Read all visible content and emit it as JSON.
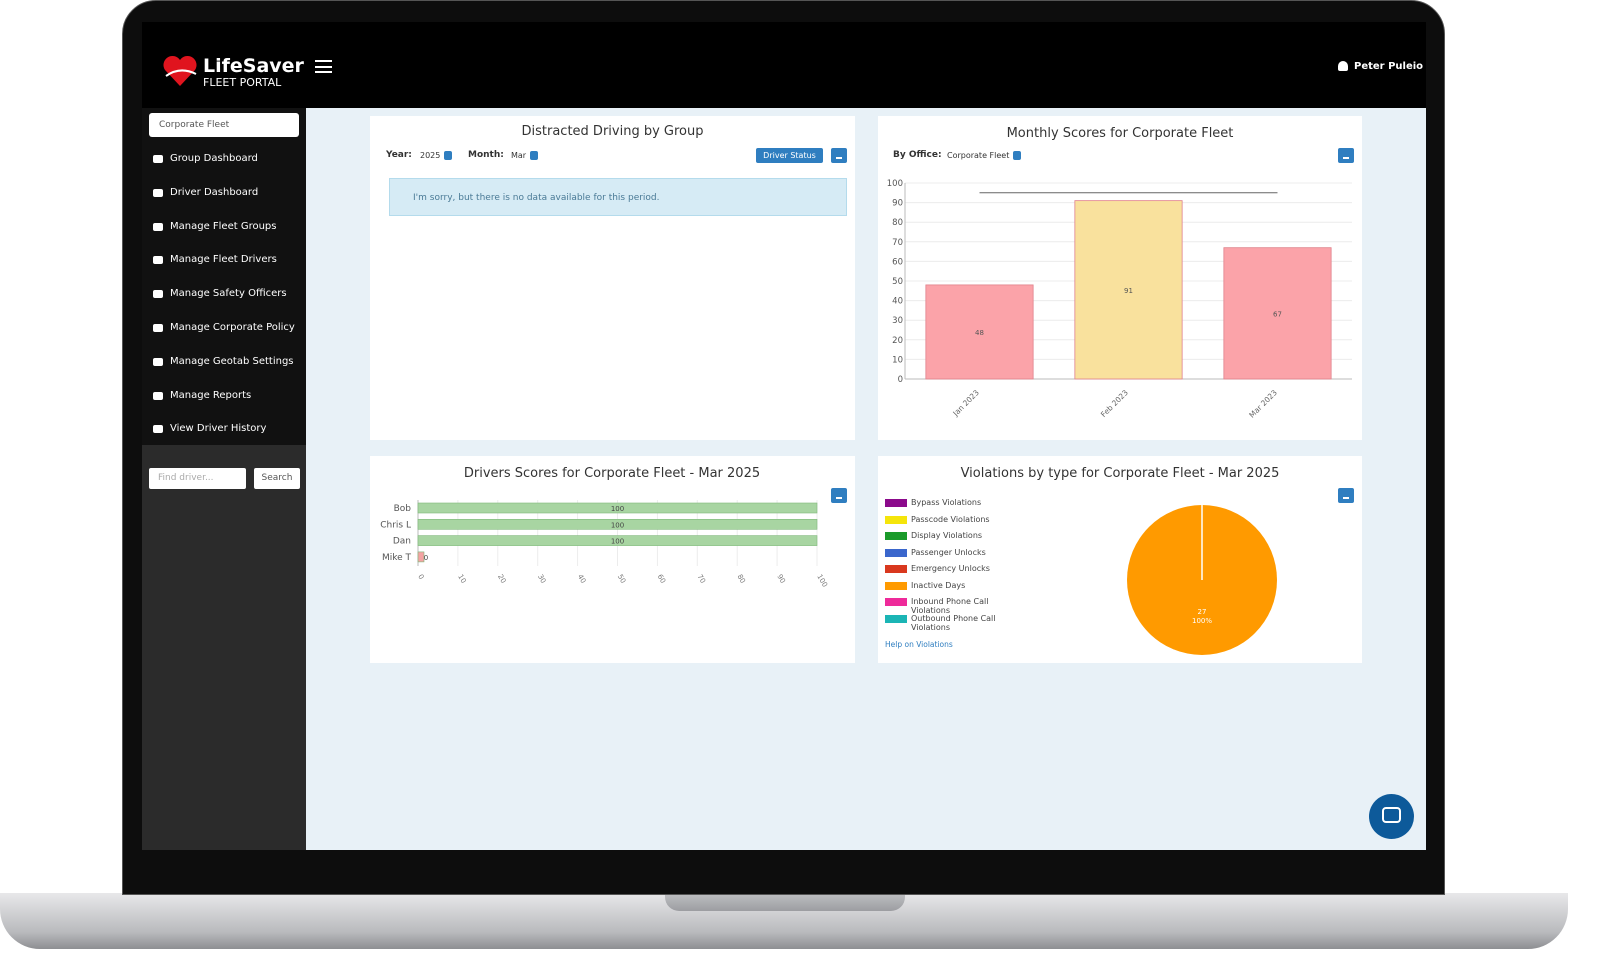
{
  "header": {
    "brand": "LifeSaver",
    "tagline": "FLEET PORTAL",
    "user": "Peter Puleio"
  },
  "sidebar": {
    "group_select": "Corporate Fleet",
    "menu": [
      "Group Dashboard",
      "Driver Dashboard",
      "Manage Fleet Groups",
      "Manage Fleet Drivers",
      "Manage Safety Officers",
      "Manage Corporate Policy",
      "Manage Geotab Settings",
      "Manage Reports",
      "View Driver History"
    ],
    "search_placeholder": "Find driver...",
    "search_button": "Search"
  },
  "distracted": {
    "title": "Distracted Driving by Group",
    "year_label": "Year:",
    "year": 2025,
    "month_label": "Month:",
    "month": "Mar",
    "button": "Driver Status",
    "message": "I'm sorry, but there is no data available for this period."
  },
  "monthly_filter": {
    "label": "By Office:",
    "value": "Corporate Fleet"
  },
  "violations_help": "Help on Violations",
  "chart_data": [
    {
      "type": "bar",
      "title": "Monthly Scores for Corporate Fleet",
      "categories": [
        "Jan 2023",
        "Feb 2023",
        "Mar 2023"
      ],
      "values": [
        48,
        91,
        67
      ],
      "colors": [
        "#fba3a9",
        "#f9e19d",
        "#fba3a9"
      ],
      "line": {
        "values": [
          95,
          95,
          95
        ],
        "color": "#666666"
      },
      "ylim": [
        0,
        100
      ],
      "yticks": [
        0,
        10,
        20,
        30,
        40,
        50,
        60,
        70,
        80,
        90,
        100
      ],
      "grid": true
    },
    {
      "type": "hbar",
      "title": "Drivers Scores for Corporate Fleet - Mar 2025",
      "categories": [
        "Bob",
        "Chris L",
        "Dan",
        "Mike T"
      ],
      "values": [
        100,
        100,
        100,
        0
      ],
      "colors": [
        "#a8d5a2",
        "#a8d5a2",
        "#a8d5a2",
        "#f4a3a3"
      ],
      "xlim": [
        0,
        100
      ],
      "xticks": [
        0,
        10,
        20,
        30,
        40,
        50,
        60,
        70,
        80,
        90,
        100
      ],
      "grid": true
    },
    {
      "type": "pie",
      "title": "Violations by type for Corporate Fleet - Mar 2025",
      "categories": [
        "Bypass Violations",
        "Passcode Violations",
        "Display Violations",
        "Passenger Unlocks",
        "Emergency Unlocks",
        "Inactive Days",
        "Inbound Phone Call Violations",
        "Outbound Phone Call Violations"
      ],
      "colors": [
        "#8b0a8b",
        "#f5e50a",
        "#1a9a2a",
        "#3a66cc",
        "#d9381e",
        "#ff9a00",
        "#ee2a9a",
        "#1bb5b5"
      ],
      "values": [
        0,
        0,
        0,
        0,
        0,
        27,
        0,
        0
      ],
      "percent_labels": [
        null,
        null,
        null,
        null,
        null,
        "100%",
        null,
        null
      ],
      "legend": "left"
    }
  ]
}
